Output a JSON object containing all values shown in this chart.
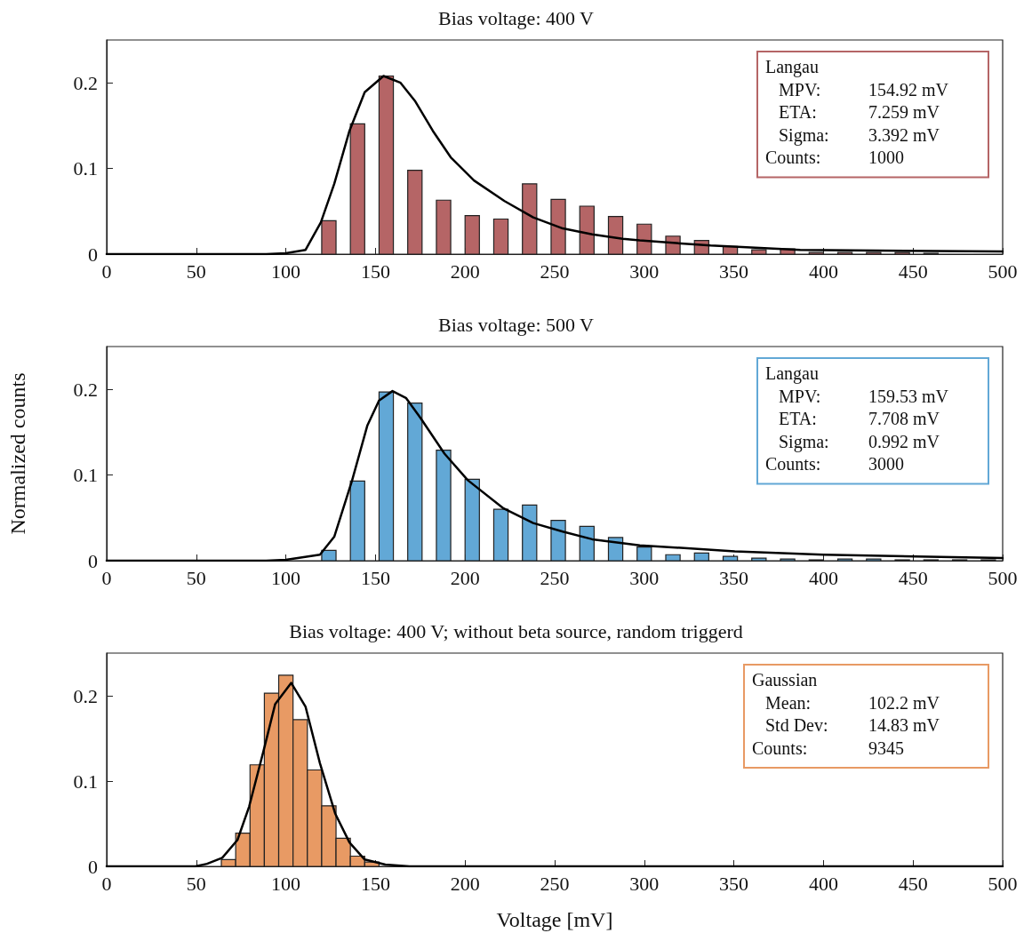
{
  "chart_data": [
    {
      "type": "bar",
      "title": "Bias voltage: 400 V",
      "xlim": [
        0,
        500
      ],
      "xticks": [
        0,
        50,
        100,
        150,
        200,
        250,
        300,
        350,
        400,
        450,
        500
      ],
      "ylim": [
        0,
        0.25
      ],
      "yticks": [
        0,
        0.1,
        0.2
      ],
      "grid": false,
      "annotations": [
        "Langau",
        "MPV:",
        "154.92 mV",
        "ETA:",
        "7.259 mV",
        "Sigma:",
        "3.392 mV",
        "Counts:",
        "1000"
      ],
      "series": [
        {
          "color": "#b56566",
          "x": [
            124,
            140,
            156,
            172,
            188,
            204,
            220,
            236,
            252,
            268,
            284,
            300,
            316,
            332,
            348,
            364,
            380,
            396,
            412,
            428,
            444,
            460
          ],
          "values": [
            0.039,
            0.152,
            0.208,
            0.098,
            0.063,
            0.045,
            0.041,
            0.082,
            0.064,
            0.056,
            0.044,
            0.035,
            0.021,
            0.016,
            0.009,
            0.005,
            0.006,
            0.002,
            0.002,
            0.002,
            0.002,
            0.001
          ]
        },
        {
          "type": "line",
          "color": "#000000",
          "x": [
            0,
            89,
            100,
            111,
            119.5,
            127,
            135.5,
            144,
            154.5,
            164,
            172,
            182,
            192,
            205,
            222,
            238,
            254.5,
            271,
            288,
            297.5,
            337,
            387,
            500
          ],
          "values": [
            0,
            0,
            0.001,
            0.005,
            0.037,
            0.082,
            0.144,
            0.189,
            0.208,
            0.2,
            0.179,
            0.144,
            0.113,
            0.086,
            0.062,
            0.043,
            0.03,
            0.023,
            0.018,
            0.016,
            0.01,
            0.005,
            0.003
          ]
        }
      ]
    },
    {
      "type": "bar",
      "title": "Bias voltage: 500 V",
      "ylabel": "Normalized counts",
      "xlim": [
        0,
        500
      ],
      "xticks": [
        0,
        50,
        100,
        150,
        200,
        250,
        300,
        350,
        400,
        450,
        500
      ],
      "ylim": [
        0,
        0.25
      ],
      "yticks": [
        0,
        0.1,
        0.2
      ],
      "grid": false,
      "annotations": [
        "Langau",
        "MPV:",
        "159.53 mV",
        "ETA:",
        "7.708 mV",
        "Sigma:",
        "0.992 mV",
        "Counts:",
        "3000"
      ],
      "series": [
        {
          "color": "#62a8d6",
          "x": [
            124,
            140,
            156,
            172,
            188,
            204,
            220,
            236,
            252,
            268,
            284,
            300,
            316,
            332,
            348,
            364,
            380,
            396,
            412,
            428,
            444,
            460,
            476,
            492
          ],
          "values": [
            0.012,
            0.093,
            0.197,
            0.184,
            0.129,
            0.095,
            0.06,
            0.065,
            0.047,
            0.04,
            0.027,
            0.016,
            0.007,
            0.009,
            0.005,
            0.003,
            0.002,
            0.001,
            0.002,
            0.002,
            0.001,
            0.001,
            0.001,
            0.001
          ]
        },
        {
          "type": "line",
          "color": "#000000",
          "x": [
            0,
            89,
            100,
            119,
            127,
            137,
            145.5,
            152,
            159.5,
            167,
            175,
            188.5,
            201.5,
            221.5,
            238,
            254.5,
            271,
            297.5,
            350.5,
            400,
            500
          ],
          "values": [
            0,
            0,
            0.001,
            0.007,
            0.028,
            0.094,
            0.158,
            0.187,
            0.198,
            0.19,
            0.167,
            0.125,
            0.094,
            0.061,
            0.044,
            0.034,
            0.025,
            0.018,
            0.011,
            0.007,
            0.003
          ]
        }
      ]
    },
    {
      "type": "histogram",
      "title": "Bias voltage: 400 V; without beta source, random triggerd",
      "xlabel": "Voltage [mV]",
      "xlim": [
        0,
        500
      ],
      "xticks": [
        0,
        50,
        100,
        150,
        200,
        250,
        300,
        350,
        400,
        450,
        500
      ],
      "ylim": [
        0,
        0.25
      ],
      "yticks": [
        0,
        0.1,
        0.2
      ],
      "grid": false,
      "annotations": [
        "Gaussian",
        "Mean:",
        "102.2 mV",
        "Std Dev:",
        "14.83 mV",
        "Counts:",
        "9345"
      ],
      "series": [
        {
          "color": "#e89a64",
          "bins": [
            64,
            72,
            80,
            88,
            96,
            104,
            112,
            120,
            128,
            136,
            144,
            152
          ],
          "values": [
            0.008,
            0.039,
            0.119,
            0.203,
            0.224,
            0.172,
            0.113,
            0.071,
            0.033,
            0.012,
            0.005
          ]
        },
        {
          "type": "line",
          "color": "#000000",
          "x": [
            0,
            49.5,
            56,
            64.5,
            73,
            79.5,
            87.5,
            94,
            103,
            111,
            119,
            127.5,
            135.5,
            144,
            155.5,
            169,
            200,
            500
          ],
          "values": [
            0,
            0,
            0.003,
            0.01,
            0.031,
            0.07,
            0.135,
            0.19,
            0.215,
            0.187,
            0.121,
            0.062,
            0.028,
            0.008,
            0.002,
            0,
            0,
            0
          ]
        }
      ]
    }
  ]
}
